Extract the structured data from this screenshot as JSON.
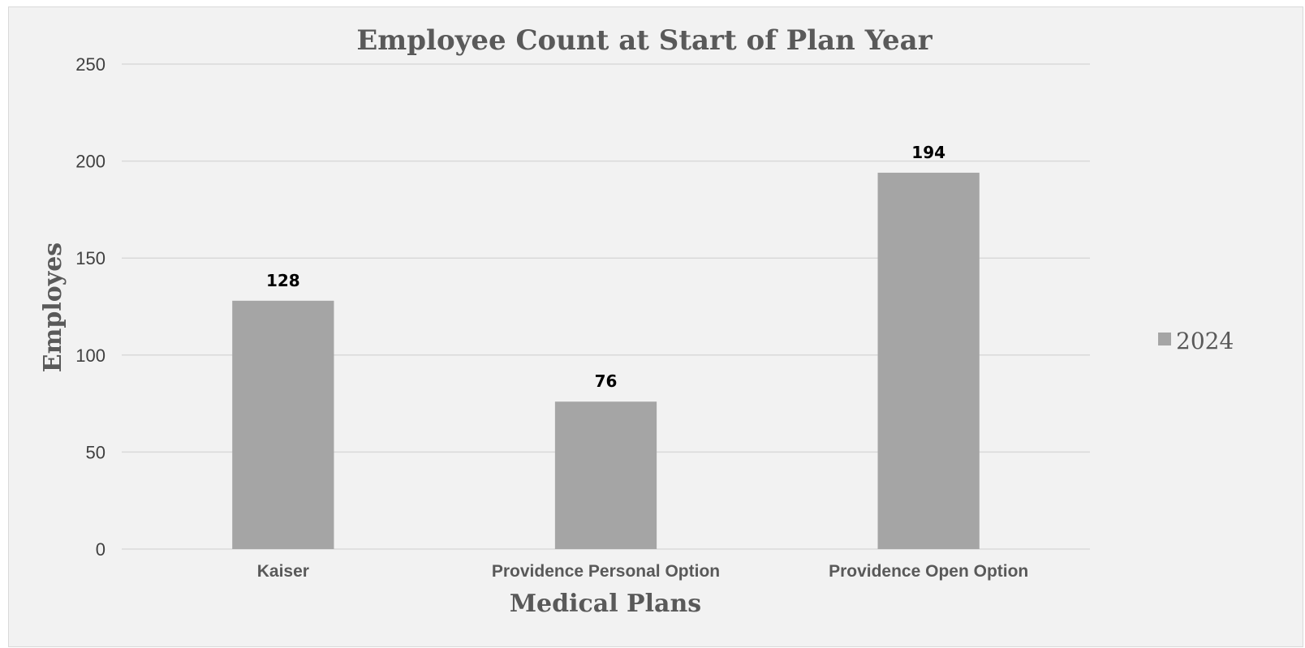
{
  "chart_data": {
    "type": "bar",
    "title": "Employee Count at Start of Plan Year",
    "xlabel": "Medical Plans",
    "ylabel": "Employes",
    "categories": [
      "Kaiser",
      "Providence Personal Option",
      "Providence Open Option"
    ],
    "series": [
      {
        "name": "2024",
        "values": [
          128,
          76,
          194
        ],
        "color": "#a5a5a5"
      }
    ],
    "ylim": [
      0,
      250
    ],
    "yticks": [
      0,
      50,
      100,
      150,
      200,
      250
    ],
    "grid": true,
    "legend_position": "right",
    "data_labels": true
  }
}
